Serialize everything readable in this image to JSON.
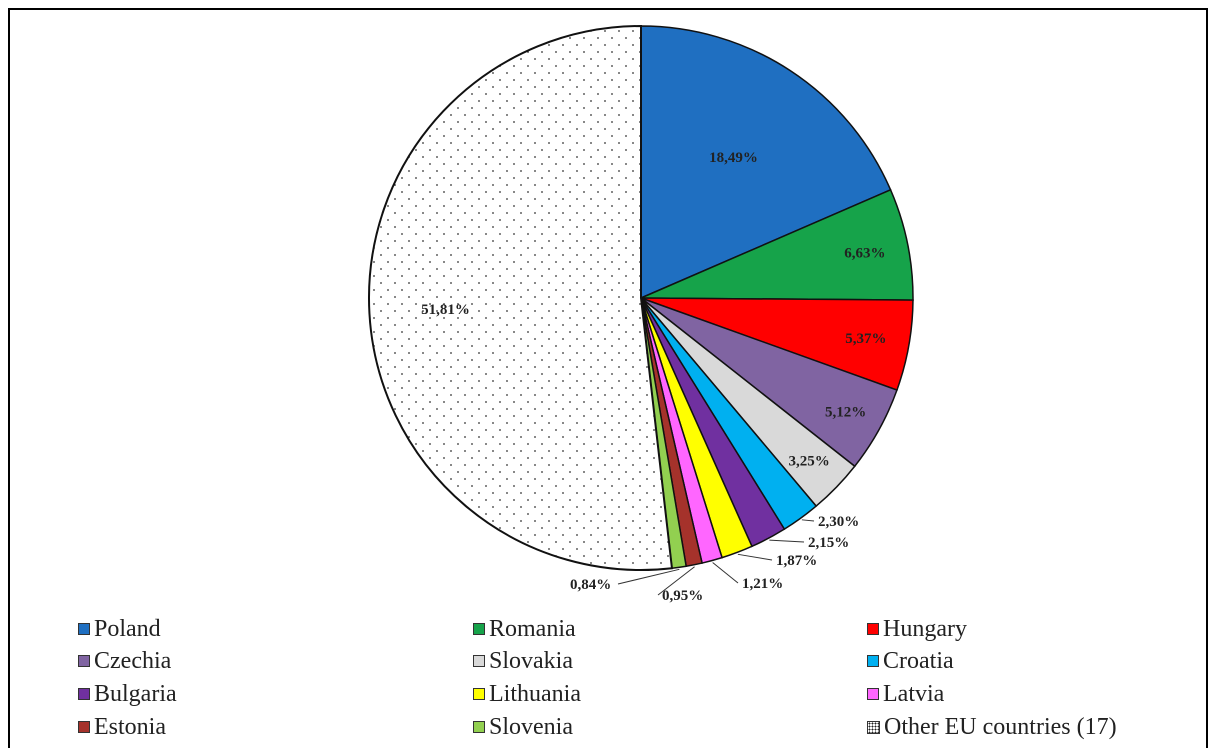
{
  "chart_data": {
    "type": "pie",
    "title": "",
    "slices": [
      {
        "name": "Poland",
        "value": 18.49,
        "label": "18,49%",
        "color": "#1f6fc1"
      },
      {
        "name": "Romania",
        "value": 6.63,
        "label": "6,63%",
        "color": "#16a34a"
      },
      {
        "name": "Hungary",
        "value": 5.37,
        "label": "5,37%",
        "color": "#ff0000"
      },
      {
        "name": "Czechia",
        "value": 5.12,
        "label": "5,12%",
        "color": "#8064a2"
      },
      {
        "name": "Slovakia",
        "value": 3.25,
        "label": "3,25%",
        "color": "#d9d9d9"
      },
      {
        "name": "Croatia",
        "value": 2.3,
        "label": "2,30%",
        "color": "#00b0f0"
      },
      {
        "name": "Bulgaria",
        "value": 2.15,
        "label": "2,15%",
        "color": "#7030a0"
      },
      {
        "name": "Lithuania",
        "value": 1.87,
        "label": "1,87%",
        "color": "#ffff00"
      },
      {
        "name": "Latvia",
        "value": 1.21,
        "label": "1,21%",
        "color": "#ff66ff"
      },
      {
        "name": "Estonia",
        "value": 0.95,
        "label": "0,95%",
        "color": "#a5322b"
      },
      {
        "name": "Slovenia",
        "value": 0.84,
        "label": "0,84%",
        "color": "#92d050"
      },
      {
        "name": "Other EU countries (17)",
        "value": 51.81,
        "label": "51,81%",
        "color": "#ffffff",
        "pattern": "dotted"
      }
    ],
    "legend_position": "bottom",
    "start_angle": "12 o'clock, clockwise"
  }
}
